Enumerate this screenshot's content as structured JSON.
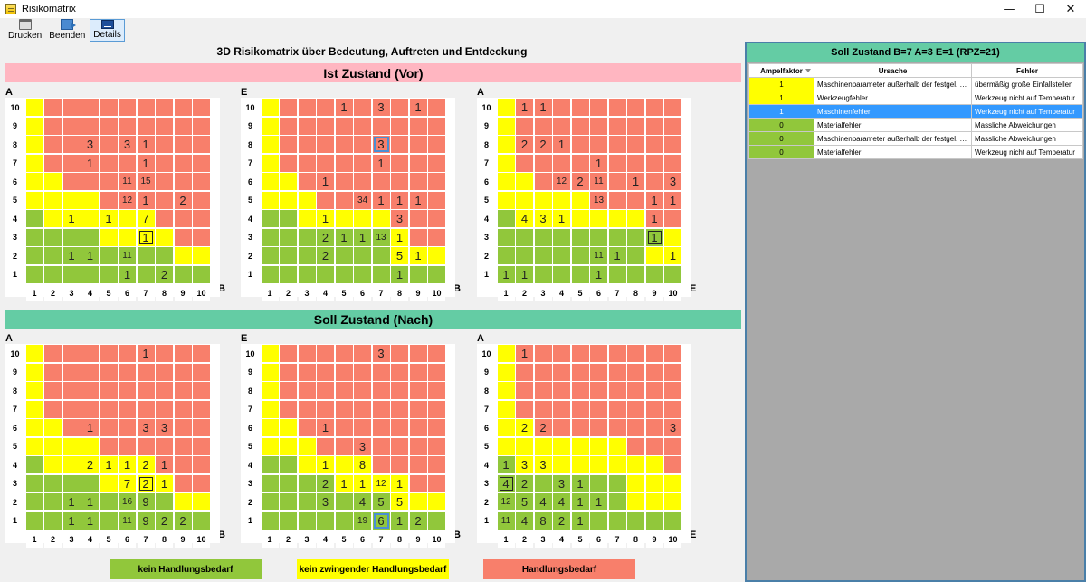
{
  "window": {
    "title": "Risikomatrix",
    "minimize": "—",
    "maximize": "☐",
    "close": "✕"
  },
  "toolbar": [
    {
      "label": "Drucken",
      "icon": "printer-icon"
    },
    {
      "label": "Beenden",
      "icon": "exit-icon"
    },
    {
      "label": "Details",
      "icon": "details-icon",
      "active": true
    }
  ],
  "main_title": "3D Risikomatrix über Bedeutung,  Auftreten und Entdeckung",
  "sections": {
    "ist": "Ist Zustand (Vor)",
    "soll": "Soll Zustand (Nach)"
  },
  "axis_ticks": [
    "1",
    "2",
    "3",
    "4",
    "5",
    "6",
    "7",
    "8",
    "9",
    "10"
  ],
  "matrices": [
    {
      "name": "ist-matrix-a-b",
      "ylabel": "A",
      "xlabel": "B",
      "colors": [
        "yrrrrrrrrr",
        "yrrrrrrrrr",
        "yrrrrrrrrr",
        "yrrrrrrrrr",
        "yyrrrrrrrr",
        "yyyyrrrrrr",
        "gyyyyyyrrr",
        "ggggyyyyrr",
        "ggggggggyy",
        "gggggggggg"
      ],
      "values": [
        [
          "4",
          "7",
          "1"
        ],
        [
          "7",
          "7",
          "1"
        ],
        [
          "4",
          "8",
          "3"
        ],
        [
          "7",
          "8",
          "1"
        ],
        [
          "6",
          "8",
          "3"
        ],
        [
          "7",
          "6",
          "15"
        ],
        [
          "6",
          "6",
          "11"
        ],
        [
          "6",
          "5",
          "12"
        ],
        [
          "7",
          "5",
          "1"
        ],
        [
          "9",
          "5",
          "2"
        ],
        [
          "3",
          "4",
          "1"
        ],
        [
          "5",
          "4",
          "1"
        ],
        [
          "7",
          "4",
          "7"
        ],
        [
          "7",
          "3",
          "1",
          "sel"
        ],
        [
          "3",
          "2",
          "1"
        ],
        [
          "4",
          "2",
          "1"
        ],
        [
          "6",
          "2",
          "11"
        ],
        [
          "6",
          "1",
          "1"
        ],
        [
          "8",
          "1",
          "2"
        ]
      ]
    },
    {
      "name": "ist-matrix-e-b",
      "ylabel": "E",
      "xlabel": "B",
      "colors": [
        "yrrrrrrrrr",
        "yrrrrrrrrr",
        "yrrrrrrrrr",
        "yrrrrrrrrr",
        "yyrrrrrrrr",
        "yyyrrrrrrr",
        "ggyyyyyrrr",
        "gggggggyrr",
        "gggggggyyy",
        "gggggggggg"
      ],
      "values": [
        [
          "5",
          "10",
          "1"
        ],
        [
          "7",
          "10",
          "3"
        ],
        [
          "9",
          "10",
          "1"
        ],
        [
          "7",
          "8",
          "3",
          "hl"
        ],
        [
          "7",
          "7",
          "1"
        ],
        [
          "4",
          "6",
          "1"
        ],
        [
          "6",
          "5",
          "34"
        ],
        [
          "7",
          "5",
          "1"
        ],
        [
          "8",
          "5",
          "1"
        ],
        [
          "9",
          "5",
          "1"
        ],
        [
          "4",
          "4",
          "1"
        ],
        [
          "8",
          "4",
          "3"
        ],
        [
          "4",
          "3",
          "2"
        ],
        [
          "5",
          "3",
          "1"
        ],
        [
          "6",
          "3",
          "1"
        ],
        [
          "7",
          "3",
          "13"
        ],
        [
          "8",
          "3",
          "1"
        ],
        [
          "4",
          "2",
          "2"
        ],
        [
          "8",
          "2",
          "5"
        ],
        [
          "9",
          "2",
          "1"
        ],
        [
          "8",
          "1",
          "1"
        ]
      ]
    },
    {
      "name": "ist-matrix-a-e",
      "ylabel": "A",
      "xlabel": "E",
      "colors": [
        "yrrrrrrrrr",
        "yrrrrrrrrr",
        "yrrrrrrrrr",
        "yrrrrrrrrr",
        "yyrrrrrrrr",
        "yyyyyrrrrr",
        "gyyyyyyyrr",
        "gggggggggy",
        "ggggggggyy",
        "gggggggggg"
      ],
      "values": [
        [
          "2",
          "10",
          "1"
        ],
        [
          "3",
          "10",
          "1"
        ],
        [
          "2",
          "8",
          "2"
        ],
        [
          "3",
          "8",
          "2"
        ],
        [
          "4",
          "8",
          "1"
        ],
        [
          "6",
          "7",
          "1"
        ],
        [
          "4",
          "6",
          "12"
        ],
        [
          "5",
          "6",
          "2"
        ],
        [
          "6",
          "6",
          "11"
        ],
        [
          "8",
          "6",
          "1"
        ],
        [
          "11",
          "6",
          "3"
        ],
        [
          "6",
          "5",
          "13"
        ],
        [
          "9",
          "5",
          "1"
        ],
        [
          "11",
          "5",
          "1"
        ],
        [
          "2",
          "4",
          "4"
        ],
        [
          "3",
          "4",
          "3"
        ],
        [
          "4",
          "4",
          "1"
        ],
        [
          "9",
          "4",
          "1"
        ],
        [
          "9",
          "3",
          "1",
          "sel"
        ],
        [
          "6",
          "2",
          "11"
        ],
        [
          "7",
          "2",
          "1"
        ],
        [
          "11",
          "2",
          "1"
        ],
        [
          "1",
          "1",
          "1"
        ],
        [
          "2",
          "1",
          "1"
        ],
        [
          "6",
          "1",
          "1"
        ]
      ]
    },
    {
      "name": "soll-matrix-a-b",
      "ylabel": "A",
      "xlabel": "B",
      "colors": [
        "yrrrrrrrrr",
        "yrrrrrrrrr",
        "yrrrrrrrrr",
        "yrrrrrrrrr",
        "yyrrrrrrrr",
        "yyyyrrrrrr",
        "gyyyyyyrrr",
        "ggggyyyyrr",
        "ggggggggyy",
        "gggggggggg"
      ],
      "values": [
        [
          "7",
          "10",
          "1"
        ],
        [
          "4",
          "6",
          "1"
        ],
        [
          "7",
          "6",
          "3"
        ],
        [
          "8",
          "6",
          "3"
        ],
        [
          "4",
          "4",
          "2"
        ],
        [
          "5",
          "4",
          "1"
        ],
        [
          "6",
          "4",
          "1"
        ],
        [
          "7",
          "4",
          "2"
        ],
        [
          "8",
          "4",
          "1"
        ],
        [
          "6",
          "3",
          "7"
        ],
        [
          "7",
          "3",
          "2",
          "sel"
        ],
        [
          "8",
          "3",
          "1"
        ],
        [
          "3",
          "2",
          "1"
        ],
        [
          "4",
          "2",
          "1"
        ],
        [
          "6",
          "2",
          "16"
        ],
        [
          "7",
          "2",
          "9"
        ],
        [
          "3",
          "1",
          "1"
        ],
        [
          "4",
          "1",
          "1"
        ],
        [
          "6",
          "1",
          "11"
        ],
        [
          "7",
          "1",
          "9"
        ],
        [
          "8",
          "1",
          "2"
        ],
        [
          "9",
          "1",
          "2"
        ]
      ]
    },
    {
      "name": "soll-matrix-e-b",
      "ylabel": "E",
      "xlabel": "B",
      "colors": [
        "yrrrrrrrrr",
        "yrrrrrrrrr",
        "yrrrrrrrrr",
        "yrrrrrrrrr",
        "yyrrrrrrrr",
        "yyyrrrrrrr",
        "ggyyyyrrrr",
        "ggggyyyyrr",
        "gggggggyyy",
        "gggggggggg"
      ],
      "values": [
        [
          "7",
          "10",
          "3"
        ],
        [
          "4",
          "6",
          "1"
        ],
        [
          "6",
          "5",
          "3"
        ],
        [
          "4",
          "4",
          "1"
        ],
        [
          "6",
          "4",
          "8"
        ],
        [
          "4",
          "3",
          "2"
        ],
        [
          "5",
          "3",
          "1"
        ],
        [
          "6",
          "3",
          "1"
        ],
        [
          "7",
          "3",
          "12"
        ],
        [
          "8",
          "3",
          "1"
        ],
        [
          "4",
          "2",
          "3"
        ],
        [
          "6",
          "2",
          "4"
        ],
        [
          "7",
          "2",
          "5"
        ],
        [
          "8",
          "2",
          "5"
        ],
        [
          "6",
          "1",
          "19"
        ],
        [
          "7",
          "1",
          "6",
          "hl"
        ],
        [
          "8",
          "1",
          "1"
        ],
        [
          "9",
          "1",
          "2"
        ]
      ]
    },
    {
      "name": "soll-matrix-a-e",
      "ylabel": "A",
      "xlabel": "E",
      "colors": [
        "yrrrrrrrrr",
        "yrrrrrrrrr",
        "yrrrrrrrrr",
        "yrrrrrrrrr",
        "yyrrrrrrrr",
        "yyyyyyyrrr",
        "gyyyyyyyyr",
        "gggggggyyy",
        "gggggggyyy",
        "gggggggggg"
      ],
      "values": [
        [
          "2",
          "10",
          "1"
        ],
        [
          "2",
          "6",
          "2"
        ],
        [
          "3",
          "6",
          "2"
        ],
        [
          "11",
          "6",
          "3"
        ],
        [
          "1",
          "4",
          "1"
        ],
        [
          "2",
          "4",
          "3"
        ],
        [
          "3",
          "4",
          "3"
        ],
        [
          "1",
          "3",
          "4",
          "sel"
        ],
        [
          "2",
          "3",
          "2"
        ],
        [
          "4",
          "3",
          "3"
        ],
        [
          "5",
          "3",
          "1"
        ],
        [
          "1",
          "2",
          "12"
        ],
        [
          "2",
          "2",
          "5"
        ],
        [
          "3",
          "2",
          "4"
        ],
        [
          "4",
          "2",
          "4"
        ],
        [
          "5",
          "2",
          "1"
        ],
        [
          "6",
          "2",
          "1"
        ],
        [
          "1",
          "1",
          "11"
        ],
        [
          "2",
          "1",
          "4"
        ],
        [
          "3",
          "1",
          "8"
        ],
        [
          "4",
          "1",
          "2"
        ],
        [
          "5",
          "1",
          "1"
        ]
      ]
    }
  ],
  "legend": {
    "green": "kein Handlungsbedarf",
    "yellow": "kein zwingender Handlungsbedarf",
    "red": "Handlungsbedarf"
  },
  "colors": {
    "green": "#91c73b",
    "yellow": "#ffff00",
    "red": "#f87f6b",
    "accent": "#3399ff"
  },
  "right_panel": {
    "header": "Soll Zustand  B=7  A=3  E=1 (RPZ=21)",
    "columns": [
      "Ampelfaktor",
      "Ursache",
      "Fehler"
    ],
    "rows": [
      {
        "af": "1",
        "color": "yellow",
        "ursache": "Maschinenparameter außerhalb der festgel. Daten...",
        "fehler": "übermäßig große Einfallstellen"
      },
      {
        "af": "1",
        "color": "yellow",
        "ursache": "Werkzeugfehler",
        "fehler": "Werkzeug nicht auf Temperatur"
      },
      {
        "af": "1",
        "color": "yellow",
        "ursache": "Maschinenfehler",
        "fehler": "Werkzeug nicht auf Temperatur",
        "selected": true
      },
      {
        "af": "0",
        "color": "green",
        "ursache": "Materialfehler",
        "fehler": "Massliche Abweichungen"
      },
      {
        "af": "0",
        "color": "green",
        "ursache": "Maschinenparameter außerhalb der festgel. Daten...",
        "fehler": "Massliche Abweichungen"
      },
      {
        "af": "0",
        "color": "green",
        "ursache": "Materialfehler",
        "fehler": "Werkzeug nicht auf Temperatur"
      }
    ]
  }
}
